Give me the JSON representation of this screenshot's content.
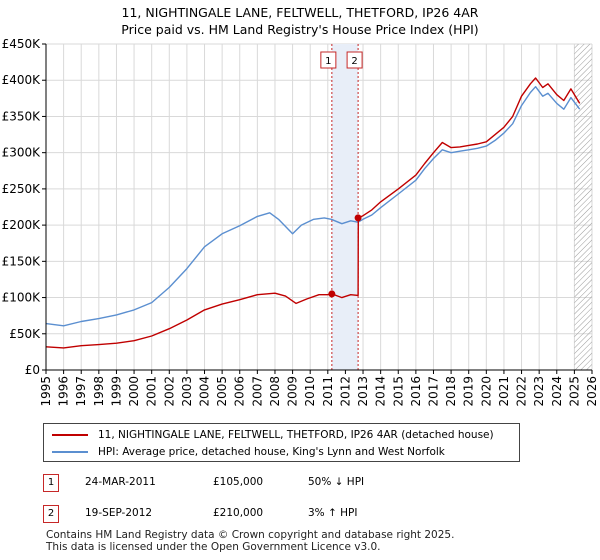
{
  "title_line1": "11, NIGHTINGALE LANE, FELTWELL, THETFORD, IP26 4AR",
  "title_line2": "Price paid vs. HM Land Registry's House Price Index (HPI)",
  "colors": {
    "property": "#c00000",
    "hpi": "#5b8fd0",
    "marker": "#c62828",
    "shade": "#e8eef8"
  },
  "chart_data": {
    "type": "line",
    "ylim": [
      0,
      450000
    ],
    "xlim": [
      1995,
      2026
    ],
    "yticks": [
      {
        "value": 0,
        "label": "£0"
      },
      {
        "value": 50000,
        "label": "£50K"
      },
      {
        "value": 100000,
        "label": "£100K"
      },
      {
        "value": 150000,
        "label": "£150K"
      },
      {
        "value": 200000,
        "label": "£200K"
      },
      {
        "value": 250000,
        "label": "£250K"
      },
      {
        "value": 300000,
        "label": "£300K"
      },
      {
        "value": 350000,
        "label": "£350K"
      },
      {
        "value": 400000,
        "label": "£400K"
      },
      {
        "value": 450000,
        "label": "£450K"
      }
    ],
    "xticks": [
      "1995",
      "1996",
      "1997",
      "1998",
      "1999",
      "2000",
      "2001",
      "2002",
      "2003",
      "2004",
      "2005",
      "2006",
      "2007",
      "2008",
      "2009",
      "2010",
      "2011",
      "2012",
      "2013",
      "2014",
      "2015",
      "2016",
      "2017",
      "2018",
      "2019",
      "2020",
      "2021",
      "2022",
      "2023",
      "2024",
      "2025",
      "2026"
    ],
    "shaded_period": [
      2011.23,
      2012.72
    ],
    "future_hatch_from": 2025.0,
    "series": [
      {
        "name": "11, NIGHTINGALE LANE, FELTWELL, THETFORD, IP26 4AR (detached house)",
        "color": "#c00000",
        "points": [
          [
            1995,
            32000
          ],
          [
            1996,
            30500
          ],
          [
            1997,
            33500
          ],
          [
            1998,
            35000
          ],
          [
            1999,
            37000
          ],
          [
            2000,
            40500
          ],
          [
            2001,
            47000
          ],
          [
            2002,
            57000
          ],
          [
            2003,
            69000
          ],
          [
            2004,
            83000
          ],
          [
            2005,
            91000
          ],
          [
            2006,
            97000
          ],
          [
            2007,
            104000
          ],
          [
            2008,
            106000
          ],
          [
            2008.6,
            102000
          ],
          [
            2009.2,
            92000
          ],
          [
            2009.8,
            98000
          ],
          [
            2010.5,
            104000
          ],
          [
            2011.0,
            104000
          ],
          [
            2011.23,
            105000
          ],
          [
            2011.8,
            100000
          ],
          [
            2012.3,
            104000
          ],
          [
            2012.72,
            103000
          ],
          [
            2012.73,
            210000
          ],
          [
            2013.0,
            213000
          ],
          [
            2013.5,
            221000
          ],
          [
            2014,
            232000
          ],
          [
            2015,
            250000
          ],
          [
            2016,
            269000
          ],
          [
            2016.5,
            285000
          ],
          [
            2017,
            300000
          ],
          [
            2017.5,
            314000
          ],
          [
            2018,
            307000
          ],
          [
            2018.5,
            308000
          ],
          [
            2019,
            310000
          ],
          [
            2019.5,
            312000
          ],
          [
            2020,
            315000
          ],
          [
            2020.5,
            325000
          ],
          [
            2021,
            335000
          ],
          [
            2021.5,
            350000
          ],
          [
            2022,
            378000
          ],
          [
            2022.5,
            395000
          ],
          [
            2022.8,
            403000
          ],
          [
            2023.2,
            390000
          ],
          [
            2023.5,
            395000
          ],
          [
            2024,
            380000
          ],
          [
            2024.4,
            372000
          ],
          [
            2024.8,
            388000
          ],
          [
            2025.3,
            368000
          ]
        ]
      },
      {
        "name": "HPI: Average price, detached house, King's Lynn and West Norfolk",
        "color": "#5b8fd0",
        "points": [
          [
            1995,
            64000
          ],
          [
            1996,
            61000
          ],
          [
            1997,
            67000
          ],
          [
            1998,
            71000
          ],
          [
            1999,
            76000
          ],
          [
            2000,
            83000
          ],
          [
            2001,
            93000
          ],
          [
            2002,
            114000
          ],
          [
            2003,
            140000
          ],
          [
            2004,
            170000
          ],
          [
            2005,
            188000
          ],
          [
            2006,
            199000
          ],
          [
            2007,
            212000
          ],
          [
            2007.7,
            217000
          ],
          [
            2008.2,
            208000
          ],
          [
            2009.0,
            188000
          ],
          [
            2009.5,
            200000
          ],
          [
            2010.2,
            208000
          ],
          [
            2010.8,
            210000
          ],
          [
            2011.2,
            208000
          ],
          [
            2011.8,
            202000
          ],
          [
            2012.3,
            206000
          ],
          [
            2012.72,
            204000
          ],
          [
            2013,
            208000
          ],
          [
            2013.5,
            214000
          ],
          [
            2014,
            224000
          ],
          [
            2015,
            243000
          ],
          [
            2016,
            262000
          ],
          [
            2016.5,
            278000
          ],
          [
            2017,
            292000
          ],
          [
            2017.5,
            304000
          ],
          [
            2018,
            300000
          ],
          [
            2018.5,
            302000
          ],
          [
            2019,
            304000
          ],
          [
            2019.5,
            306000
          ],
          [
            2020,
            309000
          ],
          [
            2020.5,
            317000
          ],
          [
            2021,
            327000
          ],
          [
            2021.5,
            340000
          ],
          [
            2022,
            365000
          ],
          [
            2022.5,
            383000
          ],
          [
            2022.8,
            391000
          ],
          [
            2023.2,
            378000
          ],
          [
            2023.5,
            382000
          ],
          [
            2024,
            368000
          ],
          [
            2024.4,
            360000
          ],
          [
            2024.8,
            376000
          ],
          [
            2025.3,
            360000
          ]
        ]
      }
    ],
    "sales": [
      {
        "label": "1",
        "x": 2011.23,
        "y": 105000
      },
      {
        "label": "2",
        "x": 2012.72,
        "y": 210000
      }
    ]
  },
  "legend": {
    "property_label": "11, NIGHTINGALE LANE, FELTWELL, THETFORD, IP26 4AR (detached house)",
    "hpi_label": "HPI: Average price, detached house, King's Lynn and West Norfolk"
  },
  "transactions": [
    {
      "num": "1",
      "date": "24-MAR-2011",
      "price": "£105,000",
      "hpi": "50% ↓ HPI"
    },
    {
      "num": "2",
      "date": "19-SEP-2012",
      "price": "£210,000",
      "hpi": "3% ↑ HPI"
    }
  ],
  "footer": {
    "line1": "Contains HM Land Registry data © Crown copyright and database right 2025.",
    "line2": "This data is licensed under the Open Government Licence v3.0."
  }
}
